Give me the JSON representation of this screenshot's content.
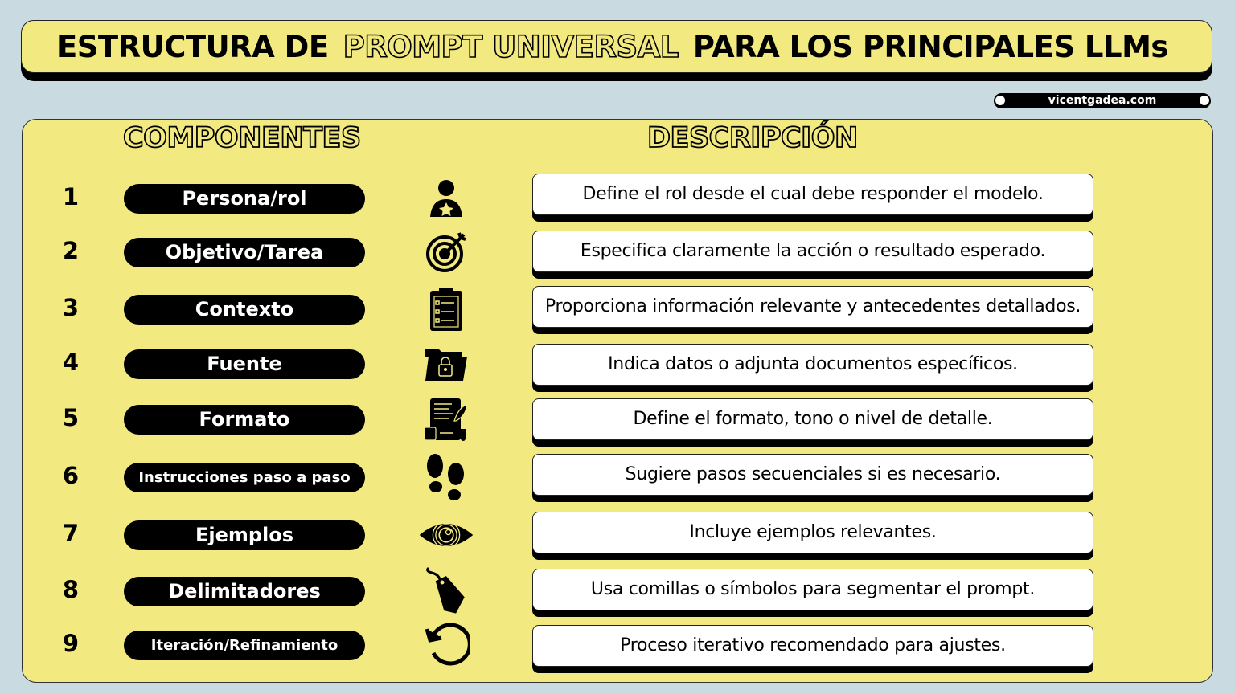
{
  "title": {
    "part1": "ESTRUCTURA DE",
    "part2": "PROMPT UNIVERSAL",
    "part3": "PARA LOS PRINCIPALES LLMs"
  },
  "site": "vicentgadea.com",
  "headers": {
    "components": "COMPONENTES",
    "description": "DESCRIPCIÓN"
  },
  "colors": {
    "background": "#c9dbe1",
    "panel": "#f2ea80",
    "badge": "#000000",
    "box": "#ffffff"
  },
  "rows": [
    {
      "num": "1",
      "label": "Persona/rol",
      "icon": "person-star-icon",
      "desc": "Define el rol desde el cual debe responder el modelo."
    },
    {
      "num": "2",
      "label": "Objetivo/Tarea",
      "icon": "target-icon",
      "desc": "Especifica claramente la acción o resultado esperado."
    },
    {
      "num": "3",
      "label": "Contexto",
      "icon": "clipboard-icon",
      "desc": "Proporciona información relevante y antecedentes detallados."
    },
    {
      "num": "4",
      "label": "Fuente",
      "icon": "locked-folder-icon",
      "desc": "Indica datos o adjunta documentos específicos."
    },
    {
      "num": "5",
      "label": "Formato",
      "icon": "document-quill-icon",
      "desc": "Define el formato, tono o nivel de detalle."
    },
    {
      "num": "6",
      "label": "Instrucciones paso a paso",
      "icon": "footprints-icon",
      "desc": "Sugiere pasos secuenciales si es necesario."
    },
    {
      "num": "7",
      "label": "Ejemplos",
      "icon": "eye-icon",
      "desc": "Incluye ejemplos relevantes."
    },
    {
      "num": "8",
      "label": "Delimitadores",
      "icon": "tag-icon",
      "desc": "Usa comillas o símbolos para segmentar el prompt."
    },
    {
      "num": "9",
      "label": "Iteración/Refinamiento",
      "icon": "refresh-icon",
      "desc": "Proceso iterativo recomendado para ajustes."
    }
  ]
}
